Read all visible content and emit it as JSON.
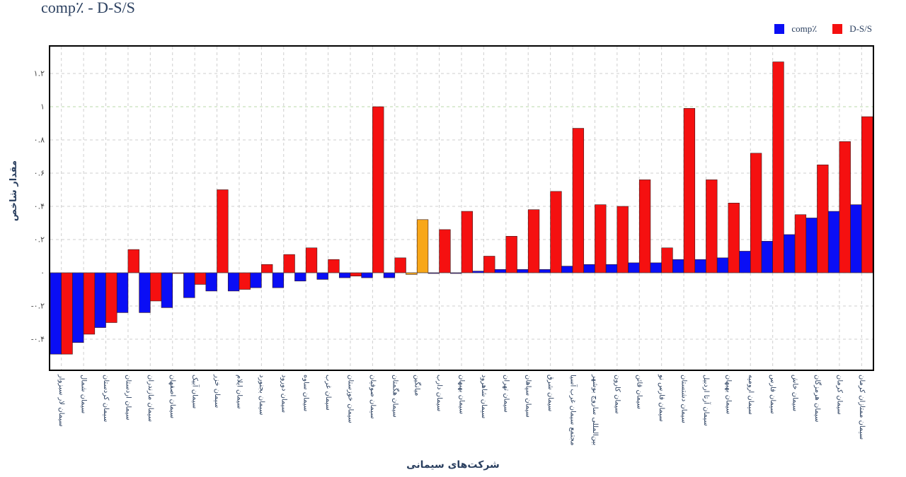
{
  "title": "comp٪ - D-S/S",
  "legend": [
    {
      "name": "comp٪",
      "color": "#0a0ef5"
    },
    {
      "name": "D-S/S",
      "color": "#f51010"
    }
  ],
  "chart_data": {
    "type": "bar",
    "title": "comp٪ - D-S/S",
    "xlabel": "شرکت‌های سیمانی",
    "ylabel": "مقدار شاخص",
    "ylim": [
      -0.57,
      1.38
    ],
    "yticks": [
      1.2,
      1,
      0.8,
      0.6,
      0.4,
      0.2,
      0,
      -0.2,
      -0.4
    ],
    "ytick_labels": [
      "۱.۲",
      "۱",
      "۰.۸",
      "۰.۶",
      "۰.۴",
      "۰.۲",
      "۰",
      "-۰.۲",
      "-۰.۴"
    ],
    "grid": true,
    "legend_position": "top-right",
    "categories": [
      "سیمان لار سبزوار",
      "سیمان شمال",
      "سیمان کردستان",
      "سیمان اردستان",
      "سیمان مازندران",
      "سیمان اصفهان",
      "سیمان آبیک",
      "سیمان خزر",
      "سیمان ایلام",
      "سیمان بجنورد",
      "سیمان دورود",
      "سیمان ساوه",
      "سیمان غرب",
      "سیمان خوزستان",
      "سیمان صوفیان",
      "سیمان هگمتان",
      "میانگین",
      "سیمان دارب",
      "سیمان بهبهان",
      "سیمان شاهرود",
      "سیمان تهران",
      "سیمان سپاهان",
      "سیمان شرق",
      "مجتمع سیمان غرب آسیا",
      "بین‌المللی ساروج بوشهر",
      "سیمان کارون",
      "سیمان قائن",
      "سیمان فارس نو",
      "سیمان دشتستان",
      "سیمان آرتا اردبیل",
      "سیمان بهبهان",
      "سیمان ارومیه",
      "سیمان فارس",
      "سیمان خاش",
      "سیمان هرمزگان",
      "سیمان کرمان",
      "سیمان ممتازان کرمان"
    ],
    "series": [
      {
        "name": "comp٪",
        "color": "#0a0ef5",
        "values": [
          -0.49,
          -0.42,
          -0.33,
          -0.24,
          -0.24,
          -0.21,
          -0.15,
          -0.11,
          -0.11,
          -0.09,
          -0.09,
          -0.05,
          -0.04,
          -0.03,
          -0.03,
          -0.03,
          -0.01,
          0.0,
          0.0,
          0.01,
          0.02,
          0.02,
          0.02,
          0.04,
          0.05,
          0.05,
          0.06,
          0.06,
          0.08,
          0.08,
          0.09,
          0.13,
          0.19,
          0.23,
          0.33,
          0.37,
          0.41
        ]
      },
      {
        "name": "D-S/S",
        "color": "#f51010",
        "values": [
          -0.49,
          -0.37,
          -0.3,
          0.14,
          -0.17,
          0.0,
          -0.07,
          0.5,
          -0.1,
          0.05,
          0.11,
          0.15,
          0.08,
          -0.02,
          1.0,
          0.09,
          0.32,
          0.26,
          0.37,
          0.1,
          0.22,
          0.38,
          0.49,
          0.87,
          0.41,
          0.4,
          0.56,
          0.15,
          0.99,
          0.56,
          0.42,
          0.72,
          1.27,
          0.35,
          0.65,
          0.79,
          0.94
        ]
      }
    ],
    "highlight": {
      "category": "میانگین",
      "color": "#f8a718",
      "value": 0.32
    }
  }
}
